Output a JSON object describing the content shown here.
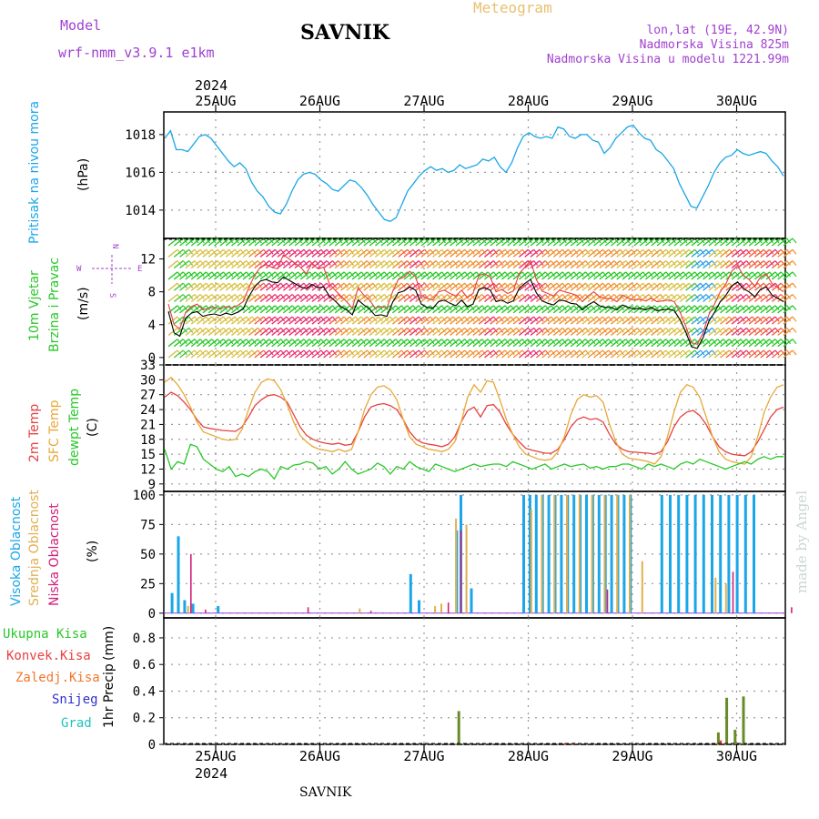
{
  "header": {
    "title": "SAVNIK",
    "chart_kind": "Meteogram",
    "model_label": "Model",
    "model_name": "wrf-nmm_v3.9.1 e1km",
    "coords": "lon,lat (19E, 42.9N)",
    "elevation": "Nadmorska Visina 825m",
    "model_elevation": "Nadmorska Visina u modelu 1221.99m",
    "year": "2024",
    "footer": "SAVNIK",
    "credit": "made by Angel"
  },
  "colors": {
    "pressure": "#1aa6e8",
    "temp2m": "#e84040",
    "sfc": "#e8a838",
    "dewpt": "#28c828",
    "high_cloud": "#1aa6e8",
    "mid_cloud": "#e0b050",
    "low_cloud": "#d0207a",
    "total_precip": "#28c828",
    "conv_precip": "#e84040",
    "frozen_precip": "#f07830",
    "snow": "#3030d0",
    "graupel": "#20c0c0",
    "model_purple": "#a040d0",
    "chart_kind": "#e8c070"
  },
  "chart_data": [
    {
      "type": "line",
      "panel": "pressure",
      "ylabel_main": "Pritisak na nivou mora",
      "ylabel_unit": "(hPa)",
      "x_ticks": [
        "25AUG",
        "26AUG",
        "27AUG",
        "28AUG",
        "29AUG",
        "30AUG"
      ],
      "ylim": [
        1012.5,
        1019.2
      ],
      "yticks": [
        "1014",
        "1016",
        "1018"
      ],
      "grid": true,
      "series": [
        {
          "values": [
            1017.8,
            1018.2,
            1017.2,
            1017.2,
            1017.1,
            1017.5,
            1017.9,
            1018.0,
            1017.8,
            1017.4,
            1017.0,
            1016.6,
            1016.3,
            1016.5,
            1016.2,
            1015.5,
            1015.0,
            1014.7,
            1014.2,
            1013.9,
            1013.8,
            1014.3,
            1015.0,
            1015.6,
            1015.9,
            1016.0,
            1015.9,
            1015.6,
            1015.4,
            1015.1,
            1015.0,
            1015.3,
            1015.6,
            1015.5,
            1015.2,
            1014.8,
            1014.3,
            1013.9,
            1013.5,
            1013.4,
            1013.6,
            1014.3,
            1015.0,
            1015.4,
            1015.8,
            1016.1,
            1016.3,
            1016.1,
            1016.2,
            1016.0,
            1016.1,
            1016.4,
            1016.2,
            1016.3,
            1016.4,
            1016.7,
            1016.6,
            1016.8,
            1016.3,
            1016.0,
            1016.5,
            1017.3,
            1017.9,
            1018.1,
            1017.9,
            1017.8,
            1017.9,
            1017.8,
            1018.4,
            1018.3,
            1017.9,
            1017.8,
            1018.0,
            1018.0,
            1017.7,
            1017.6,
            1017.0,
            1017.3,
            1017.8,
            1018.1,
            1018.4,
            1018.5,
            1018.1,
            1017.8,
            1017.7,
            1017.2,
            1017.0,
            1016.6,
            1016.2,
            1015.4,
            1014.8,
            1014.2,
            1014.1,
            1014.7,
            1015.3,
            1016.0,
            1016.5,
            1016.8,
            1016.9,
            1017.2,
            1017.0,
            1016.9,
            1017.0,
            1017.1,
            1017.0,
            1016.6,
            1016.3,
            1015.8
          ]
        }
      ]
    },
    {
      "type": "line",
      "panel": "wind",
      "ylabel_main": "10m Vjetar",
      "ylabel_sub": "Brzina i Pravac",
      "ylabel_unit": "(m/s)",
      "compass": [
        "N",
        "E",
        "S",
        "W"
      ],
      "ylim": [
        -0.9,
        14.5
      ],
      "yticks": [
        "0",
        "4",
        "8",
        "12"
      ],
      "series": [
        {
          "name": "",
          "values": [
            6.5,
            4.0,
            3.5,
            5.5,
            6.2,
            6.5,
            5.8,
            6.0,
            6.1,
            5.9,
            6.2,
            6.0,
            6.3,
            6.8,
            8.5,
            10.0,
            11.0,
            11.3,
            11.0,
            10.8,
            12.5,
            12.0,
            11.5,
            11.0,
            10.2,
            11.5,
            10.8,
            11.0,
            9.0,
            8.2,
            7.5,
            6.8,
            6.0,
            8.5,
            7.6,
            7.0,
            6.0,
            6.2,
            6.0,
            8.0,
            9.5,
            9.8,
            10.5,
            9.8,
            7.6,
            7.2,
            7.0,
            8.0,
            8.2,
            7.8,
            7.5,
            8.2,
            7.3,
            7.8,
            10.0,
            10.2,
            9.8,
            8.0,
            8.3,
            7.8,
            8.1,
            10.2,
            11.0,
            11.8,
            9.5,
            8.1,
            7.8,
            7.5,
            8.2,
            8.0,
            7.8,
            7.6,
            6.8,
            7.5,
            8.0,
            7.4,
            7.2,
            7.2,
            6.8,
            7.6,
            7.2,
            7.0,
            7.1,
            6.9,
            7.2,
            6.8,
            6.9,
            7.0,
            6.8,
            5.5,
            3.8,
            1.8,
            1.6,
            3.0,
            5.2,
            6.5,
            8.0,
            9.0,
            10.5,
            11.2,
            10.0,
            9.5,
            8.7,
            9.8,
            10.2,
            9.0,
            8.5,
            8.0
          ]
        },
        {
          "name": "",
          "values": [
            5.6,
            3.0,
            2.6,
            4.8,
            5.4,
            5.6,
            5.0,
            5.2,
            5.3,
            5.1,
            5.4,
            5.2,
            5.5,
            5.9,
            7.4,
            8.6,
            9.3,
            9.5,
            9.2,
            9.1,
            9.8,
            9.4,
            9.0,
            8.6,
            8.4,
            8.9,
            8.5,
            8.6,
            7.5,
            6.9,
            6.2,
            5.8,
            5.2,
            7.0,
            6.4,
            5.9,
            5.1,
            5.2,
            5.0,
            6.7,
            7.9,
            8.1,
            8.6,
            8.2,
            6.5,
            6.1,
            6.0,
            6.8,
            7.0,
            6.6,
            6.3,
            7.0,
            6.2,
            6.5,
            8.3,
            8.5,
            8.2,
            6.8,
            7.0,
            6.6,
            6.9,
            8.4,
            9.0,
            9.5,
            7.9,
            6.9,
            6.6,
            6.4,
            7.0,
            6.9,
            6.6,
            6.5,
            5.8,
            6.4,
            6.8,
            6.3,
            6.1,
            6.1,
            5.8,
            6.4,
            6.1,
            5.9,
            6.0,
            5.8,
            6.1,
            5.7,
            5.8,
            5.9,
            5.7,
            4.6,
            3.1,
            1.3,
            1.1,
            2.4,
            4.4,
            5.5,
            6.8,
            7.6,
            8.7,
            9.2,
            8.4,
            8.0,
            7.4,
            8.3,
            8.6,
            7.6,
            7.2,
            6.8
          ]
        }
      ]
    },
    {
      "type": "line",
      "panel": "temperature",
      "ylabel_main": "2m Temp",
      "ylabel_sfc": "SFC Temp",
      "ylabel_dew": "dewpt Temp",
      "ylabel_unit": "(C)",
      "ylim": [
        7.5,
        33
      ],
      "yticks": [
        "9",
        "12",
        "15",
        "18",
        "21",
        "24",
        "27",
        "30",
        "33"
      ],
      "series": [
        {
          "name": "2m Temp",
          "values": [
            26.5,
            27.5,
            26.8,
            25.5,
            24.0,
            22.0,
            20.5,
            20.2,
            20.0,
            19.8,
            19.7,
            19.6,
            20.5,
            22.5,
            24.8,
            26.0,
            26.8,
            27.0,
            26.5,
            25.5,
            23.0,
            20.5,
            18.8,
            18.0,
            17.5,
            17.2,
            17.0,
            17.2,
            16.8,
            17.0,
            19.5,
            22.5,
            24.5,
            25.0,
            25.2,
            24.8,
            24.0,
            22.0,
            19.5,
            18.0,
            17.3,
            17.0,
            16.8,
            16.5,
            17.0,
            18.5,
            21.5,
            23.8,
            24.5,
            22.5,
            24.8,
            25.0,
            23.5,
            21.0,
            19.0,
            17.5,
            16.2,
            15.8,
            15.5,
            15.2,
            15.2,
            16.0,
            18.0,
            20.5,
            22.0,
            22.5,
            22.0,
            22.2,
            21.5,
            19.0,
            17.0,
            16.0,
            15.5,
            15.4,
            15.3,
            15.2,
            15.0,
            15.5,
            17.5,
            20.5,
            22.5,
            23.5,
            23.8,
            22.8,
            21.0,
            18.5,
            16.5,
            15.5,
            15.0,
            14.8,
            14.7,
            15.5,
            17.5,
            20.0,
            22.5,
            24.0,
            24.5
          ]
        },
        {
          "name": "SFC Temp",
          "values": [
            29.5,
            30.5,
            29.0,
            27.0,
            24.5,
            21.5,
            19.5,
            19.0,
            18.5,
            18.0,
            17.8,
            18.0,
            20.0,
            24.0,
            27.5,
            29.5,
            30.2,
            29.8,
            28.0,
            25.0,
            21.5,
            18.8,
            17.5,
            16.5,
            16.0,
            15.8,
            15.5,
            16.0,
            15.5,
            16.0,
            19.5,
            24.0,
            27.0,
            28.5,
            28.8,
            28.0,
            26.0,
            22.0,
            18.5,
            17.0,
            16.5,
            16.0,
            15.8,
            15.5,
            16.0,
            17.5,
            21.5,
            26.5,
            29.0,
            27.5,
            29.8,
            29.5,
            26.0,
            22.0,
            19.0,
            16.5,
            15.0,
            14.5,
            14.0,
            13.8,
            14.0,
            15.5,
            18.5,
            23.0,
            26.0,
            27.0,
            26.5,
            26.8,
            25.5,
            21.0,
            17.5,
            15.0,
            14.2,
            14.0,
            13.8,
            13.5,
            13.0,
            14.5,
            18.5,
            23.5,
            27.5,
            29.0,
            28.5,
            26.5,
            22.5,
            18.5,
            15.5,
            14.0,
            13.5,
            13.2,
            13.0,
            14.5,
            18.5,
            23.5,
            26.5,
            28.5,
            29.0
          ]
        },
        {
          "name": "dewpt Temp",
          "values": [
            16.0,
            12.0,
            13.5,
            13.0,
            17.0,
            16.5,
            14.0,
            13.0,
            12.0,
            11.5,
            12.5,
            10.5,
            11.0,
            10.5,
            11.5,
            12.0,
            11.5,
            10.0,
            12.5,
            12.0,
            12.8,
            13.0,
            13.5,
            13.2,
            12.0,
            12.5,
            11.0,
            12.0,
            13.5,
            12.0,
            11.0,
            11.5,
            12.0,
            13.2,
            12.5,
            11.0,
            12.5,
            12.0,
            13.5,
            12.5,
            12.0,
            11.5,
            13.0,
            12.5,
            12.0,
            11.5,
            12.0,
            12.5,
            13.0,
            12.5,
            12.8,
            13.0,
            13.0,
            12.5,
            13.5,
            13.0,
            12.5,
            12.0,
            12.5,
            13.0,
            12.0,
            12.5,
            13.0,
            12.5,
            12.8,
            13.0,
            12.2,
            12.5,
            12.0,
            12.5,
            12.5,
            13.0,
            13.0,
            12.5,
            12.0,
            13.0,
            12.5,
            13.0,
            12.5,
            12.0,
            13.0,
            13.5,
            13.0,
            14.0,
            13.5,
            13.0,
            12.5,
            12.0,
            12.5,
            13.0,
            13.5,
            13.0,
            14.0,
            14.5,
            14.0,
            14.5,
            14.5
          ]
        }
      ]
    },
    {
      "type": "bar",
      "panel": "clouds",
      "ylabel_high": "Visoka Oblacnost",
      "ylabel_mid": "Srednja Oblacnost",
      "ylabel_low": "Niska Oblacnost",
      "ylabel_unit": "(%)",
      "ylim": [
        -4,
        103
      ],
      "yticks": [
        "0",
        "25",
        "50",
        "75",
        "100"
      ],
      "series": [
        {
          "name": "Visoka Oblacnost",
          "points": [
            [
              2,
              17
            ],
            [
              5,
              65
            ],
            [
              8,
              11
            ],
            [
              12,
              8
            ],
            [
              24,
              6
            ],
            [
              116,
              33
            ],
            [
              120,
              11
            ],
            [
              138,
              70
            ],
            [
              140,
              100
            ],
            [
              145,
              21
            ],
            [
              170,
              100
            ],
            [
              173,
              100
            ],
            [
              176,
              100
            ],
            [
              179,
              100
            ],
            [
              182,
              100
            ],
            [
              185,
              100
            ],
            [
              188,
              100
            ],
            [
              191,
              100
            ],
            [
              194,
              100
            ],
            [
              197,
              100
            ],
            [
              200,
              100
            ],
            [
              203,
              100
            ],
            [
              206,
              100
            ],
            [
              209,
              100
            ],
            [
              212,
              100
            ],
            [
              215,
              100
            ],
            [
              218,
              100
            ],
            [
              221,
              100
            ],
            [
              236,
              100
            ],
            [
              240,
              100
            ],
            [
              244,
              100
            ],
            [
              248,
              100
            ],
            [
              252,
              100
            ],
            [
              256,
              100
            ],
            [
              260,
              100
            ],
            [
              264,
              100
            ],
            [
              268,
              100
            ],
            [
              272,
              100
            ],
            [
              276,
              100
            ],
            [
              280,
              100
            ]
          ]
        },
        {
          "name": "Srednja Oblacnost",
          "points": [
            [
              9,
              6
            ],
            [
              91,
              4
            ],
            [
              127,
              6
            ],
            [
              130,
              8
            ],
            [
              137,
              80
            ],
            [
              142,
              75
            ],
            [
              173,
              88
            ],
            [
              178,
              100
            ],
            [
              184,
              100
            ],
            [
              190,
              100
            ],
            [
              196,
              100
            ],
            [
              202,
              100
            ],
            [
              208,
              100
            ],
            [
              214,
              100
            ],
            [
              220,
              100
            ],
            [
              226,
              44
            ],
            [
              261,
              30
            ],
            [
              266,
              25
            ]
          ]
        },
        {
          "name": "Niska Oblacnost",
          "points": [
            [
              10,
              50
            ],
            [
              17,
              3
            ],
            [
              66,
              5
            ],
            [
              96,
              2
            ],
            [
              133,
              9
            ],
            [
              139,
              70
            ],
            [
              209,
              20
            ],
            [
              269,
              35
            ],
            [
              297,
              5
            ]
          ]
        }
      ]
    },
    {
      "type": "bar",
      "panel": "precip",
      "ylabel_main": "1hr Precip",
      "ylabel_unit": "(mm)",
      "legend": [
        "Ukupna Kisa",
        "Konvek.Kisa",
        "Zaledj.Kisa",
        "Snijeg",
        "Grad"
      ],
      "ylim": [
        0,
        0.95
      ],
      "yticks": [
        "0",
        "0.2",
        "0.4",
        "0.6",
        "0.8"
      ],
      "series": [
        {
          "name": "Ukupna Kisa",
          "points": [
            [
              139,
              0.25
            ],
            [
              263,
              0.09
            ],
            [
              267,
              0.35
            ],
            [
              271,
              0.11
            ],
            [
              275,
              0.36
            ]
          ]
        },
        {
          "name": "Konvek.Kisa",
          "points": [
            [
              190,
              0.01
            ],
            [
              194,
              0.012
            ],
            [
              264,
              0.03
            ]
          ]
        }
      ]
    }
  ]
}
